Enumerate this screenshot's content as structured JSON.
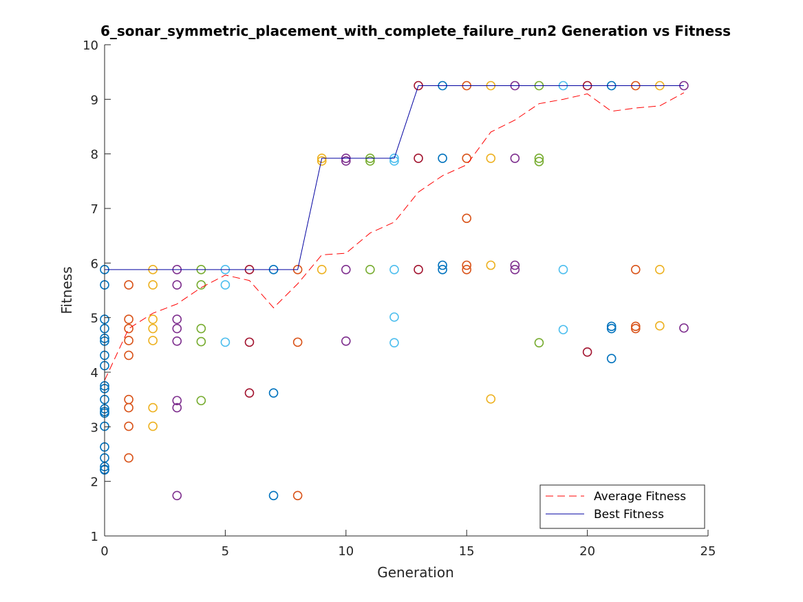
{
  "chart_data": {
    "type": "scatter",
    "title": "6_sonar_symmetric_placement_with_complete_failure_run2 Generation vs Fitness",
    "xlabel": "Generation",
    "ylabel": "Fitness",
    "xlim": [
      0,
      25
    ],
    "ylim": [
      1,
      10
    ],
    "xticks": [
      "0",
      "5",
      "10",
      "15",
      "20",
      "25"
    ],
    "yticks": [
      "1",
      "2",
      "3",
      "4",
      "5",
      "6",
      "7",
      "8",
      "9",
      "10"
    ],
    "grid": false,
    "legend_position": "bottom-right",
    "generation_colors": [
      "#0072BD",
      "#D95319",
      "#EDB120",
      "#7E2F8E",
      "#77AC30",
      "#4DBEEE",
      "#A2142F"
    ],
    "population": [
      {
        "generation": 0,
        "fitness": [
          5.88,
          5.6,
          4.97,
          4.8,
          4.62,
          4.57,
          4.31,
          4.12,
          3.75,
          3.7,
          3.5,
          3.33,
          3.28,
          3.25,
          3.01,
          2.63,
          2.43,
          2.27,
          2.22,
          2.21
        ]
      },
      {
        "generation": 1,
        "fitness": [
          5.6,
          4.97,
          4.8,
          4.58,
          4.31,
          3.5,
          3.35,
          3.01,
          2.43
        ]
      },
      {
        "generation": 2,
        "fitness": [
          5.88,
          5.6,
          4.97,
          4.8,
          4.58,
          3.35,
          3.01
        ]
      },
      {
        "generation": 3,
        "fitness": [
          5.88,
          5.6,
          4.97,
          4.8,
          4.57,
          3.48,
          3.35,
          1.74
        ]
      },
      {
        "generation": 4,
        "fitness": [
          5.88,
          5.6,
          4.8,
          4.56,
          3.48
        ]
      },
      {
        "generation": 5,
        "fitness": [
          5.88,
          5.6,
          4.55
        ]
      },
      {
        "generation": 6,
        "fitness": [
          5.88,
          4.55,
          3.62
        ]
      },
      {
        "generation": 7,
        "fitness": [
          5.88,
          3.62,
          1.74
        ]
      },
      {
        "generation": 8,
        "fitness": [
          5.88,
          4.55,
          1.74
        ]
      },
      {
        "generation": 9,
        "fitness": [
          7.92,
          7.87,
          5.88
        ]
      },
      {
        "generation": 10,
        "fitness": [
          7.92,
          7.87,
          5.88,
          4.57
        ]
      },
      {
        "generation": 11,
        "fitness": [
          7.92,
          7.87,
          5.88
        ]
      },
      {
        "generation": 12,
        "fitness": [
          7.92,
          7.87,
          5.88,
          5.01,
          4.54
        ]
      },
      {
        "generation": 13,
        "fitness": [
          9.25,
          7.92,
          5.88
        ]
      },
      {
        "generation": 14,
        "fitness": [
          9.25,
          7.92,
          5.96,
          5.88
        ]
      },
      {
        "generation": 15,
        "fitness": [
          9.25,
          7.92,
          6.82,
          5.96,
          5.88
        ]
      },
      {
        "generation": 16,
        "fitness": [
          9.25,
          7.92,
          5.96,
          3.51
        ]
      },
      {
        "generation": 17,
        "fitness": [
          9.25,
          7.92,
          5.96,
          5.88
        ]
      },
      {
        "generation": 18,
        "fitness": [
          9.25,
          7.92,
          7.86,
          4.54
        ]
      },
      {
        "generation": 19,
        "fitness": [
          9.25,
          5.88,
          4.78
        ]
      },
      {
        "generation": 20,
        "fitness": [
          9.25,
          4.37
        ]
      },
      {
        "generation": 21,
        "fitness": [
          9.25,
          4.84,
          4.8,
          4.25
        ]
      },
      {
        "generation": 22,
        "fitness": [
          9.25,
          5.88,
          4.84,
          4.8
        ]
      },
      {
        "generation": 23,
        "fitness": [
          9.25,
          5.88,
          4.85
        ]
      },
      {
        "generation": 24,
        "fitness": [
          9.25,
          4.81
        ]
      }
    ],
    "series": [
      {
        "name": "Average Fitness",
        "color": "#FF0000",
        "style": "dashed",
        "x": [
          0,
          1,
          2,
          3,
          4,
          5,
          6,
          7,
          8,
          9,
          10,
          11,
          12,
          13,
          14,
          15,
          16,
          17,
          18,
          19,
          20,
          21,
          22,
          23,
          24
        ],
        "y": [
          3.85,
          4.8,
          5.08,
          5.25,
          5.55,
          5.78,
          5.68,
          5.18,
          5.62,
          6.15,
          6.18,
          6.55,
          6.75,
          7.3,
          7.6,
          7.8,
          8.4,
          8.62,
          8.92,
          9.0,
          9.1,
          8.78,
          8.84,
          8.88,
          9.12
        ]
      },
      {
        "name": "Best Fitness",
        "color": "#0000A0",
        "style": "solid",
        "x": [
          0,
          1,
          2,
          3,
          4,
          5,
          6,
          7,
          8,
          9,
          10,
          11,
          12,
          13,
          14,
          15,
          16,
          17,
          18,
          19,
          20,
          21,
          22,
          23,
          24
        ],
        "y": [
          5.88,
          5.88,
          5.88,
          5.88,
          5.88,
          5.88,
          5.88,
          5.88,
          5.88,
          7.92,
          7.92,
          7.92,
          7.92,
          9.25,
          9.25,
          9.25,
          9.25,
          9.25,
          9.25,
          9.25,
          9.25,
          9.25,
          9.25,
          9.25,
          9.25
        ]
      }
    ]
  }
}
